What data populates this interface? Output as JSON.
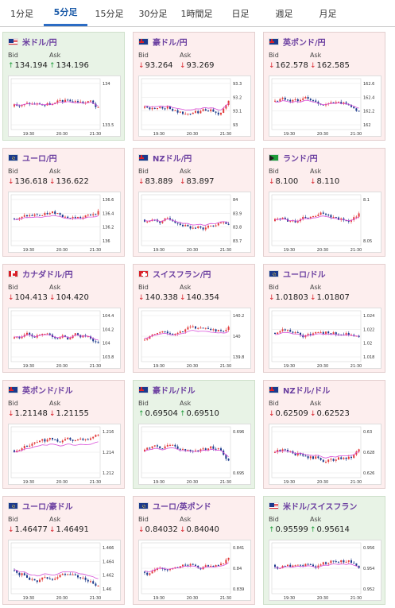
{
  "tabs": [
    {
      "label": "1分足",
      "active": false
    },
    {
      "label": "5分足",
      "active": true
    },
    {
      "label": "15分足",
      "active": false
    },
    {
      "label": "30分足",
      "active": false
    },
    {
      "label": "1時間足",
      "active": false
    },
    {
      "label": "日足",
      "active": false
    },
    {
      "label": "週足",
      "active": false
    },
    {
      "label": "月足",
      "active": false
    }
  ],
  "labels": {
    "bid": "Bid",
    "ask": "Ask"
  },
  "colors": {
    "down": "#d9222a",
    "up": "#1f9d3a",
    "candle_up": "#e23b3b",
    "candle_down": "#1b3a8c",
    "ma": "#d94fd9"
  },
  "cards": [
    {
      "title": "米ドル/円",
      "trend": "up",
      "flag": "us",
      "bid": "134.194",
      "ask": "134.196",
      "y_ticks": [
        "134",
        "133.5"
      ],
      "x_ticks": [
        "19:30",
        "20:30",
        "21:30"
      ]
    },
    {
      "title": "豪ドル/円",
      "trend": "down",
      "flag": "au",
      "bid": "93.264",
      "ask": "93.269",
      "y_ticks": [
        "93.3",
        "93.2",
        "93.1",
        "93"
      ],
      "x_ticks": [
        "19:30",
        "20:30",
        "21:30"
      ]
    },
    {
      "title": "英ポンド/円",
      "trend": "down",
      "flag": "gb",
      "bid": "162.578",
      "ask": "162.585",
      "y_ticks": [
        "162.6",
        "162.4",
        "162.2",
        "162"
      ],
      "x_ticks": [
        "19:30",
        "20:30",
        "21:30"
      ]
    },
    {
      "title": "ユーロ/円",
      "trend": "down",
      "flag": "eu",
      "bid": "136.618",
      "ask": "136.622",
      "y_ticks": [
        "136.6",
        "136.4",
        "136.2",
        "136"
      ],
      "x_ticks": [
        "19:30",
        "20:30",
        "21:30"
      ]
    },
    {
      "title": "NZドル/円",
      "trend": "down",
      "flag": "nz",
      "bid": "83.889",
      "ask": "83.897",
      "y_ticks": [
        "84",
        "83.9",
        "83.8",
        "83.7"
      ],
      "x_ticks": [
        "19:30",
        "20:30",
        "21:30"
      ]
    },
    {
      "title": "ランド/円",
      "trend": "down",
      "flag": "za",
      "bid": "8.100",
      "ask": "8.110",
      "y_ticks": [
        "8.1",
        "8.05"
      ],
      "x_ticks": [
        "19:30",
        "20:30",
        "21:30"
      ]
    },
    {
      "title": "カナダドル/円",
      "trend": "down",
      "flag": "ca",
      "bid": "104.413",
      "ask": "104.420",
      "y_ticks": [
        "104.4",
        "104.2",
        "104",
        "103.8"
      ],
      "x_ticks": [
        "19:30",
        "20:30",
        "21:30"
      ]
    },
    {
      "title": "スイスフラン/円",
      "trend": "down",
      "flag": "ch",
      "bid": "140.338",
      "ask": "140.354",
      "y_ticks": [
        "140.2",
        "140",
        "139.8"
      ],
      "x_ticks": [
        "19:30",
        "20:30",
        "21:30"
      ]
    },
    {
      "title": "ユーロ/ドル",
      "trend": "down",
      "flag": "eu",
      "bid": "1.01803",
      "ask": "1.01807",
      "y_ticks": [
        "1.024",
        "1.022",
        "1.02",
        "1.018"
      ],
      "x_ticks": [
        "19:30",
        "20:30",
        "21:30"
      ]
    },
    {
      "title": "英ポンド/ドル",
      "trend": "down",
      "flag": "gb",
      "bid": "1.21148",
      "ask": "1.21155",
      "y_ticks": [
        "1.216",
        "1.214",
        "1.212"
      ],
      "x_ticks": [
        "19:30",
        "20:30",
        "21:30"
      ]
    },
    {
      "title": "豪ドル/ドル",
      "trend": "up",
      "flag": "au",
      "bid": "0.69504",
      "ask": "0.69510",
      "y_ticks": [
        "0.696",
        "0.695"
      ],
      "x_ticks": [
        "19:30",
        "20:30",
        "21:30"
      ]
    },
    {
      "title": "NZドル/ドル",
      "trend": "down",
      "flag": "nz",
      "bid": "0.62509",
      "ask": "0.62523",
      "y_ticks": [
        "0.63",
        "0.628",
        "0.626"
      ],
      "x_ticks": [
        "19:30",
        "20:30",
        "21:30"
      ]
    },
    {
      "title": "ユーロ/豪ドル",
      "trend": "down",
      "flag": "eu",
      "bid": "1.46477",
      "ask": "1.46491",
      "y_ticks": [
        "1.466",
        "1.464",
        "1.462",
        "1.46"
      ],
      "x_ticks": [
        "19:30",
        "20:30",
        "21:30"
      ]
    },
    {
      "title": "ユーロ/英ポンド",
      "trend": "down",
      "flag": "eu",
      "bid": "0.84032",
      "ask": "0.84040",
      "y_ticks": [
        "0.841",
        "0.84",
        "0.839"
      ],
      "x_ticks": [
        "19:30",
        "20:30",
        "21:30"
      ]
    },
    {
      "title": "米ドル/スイスフラン",
      "trend": "up",
      "flag": "us",
      "bid": "0.95599",
      "ask": "0.95614",
      "y_ticks": [
        "0.956",
        "0.954",
        "0.952"
      ],
      "x_ticks": [
        "19:30",
        "20:30",
        "21:30"
      ]
    }
  ]
}
